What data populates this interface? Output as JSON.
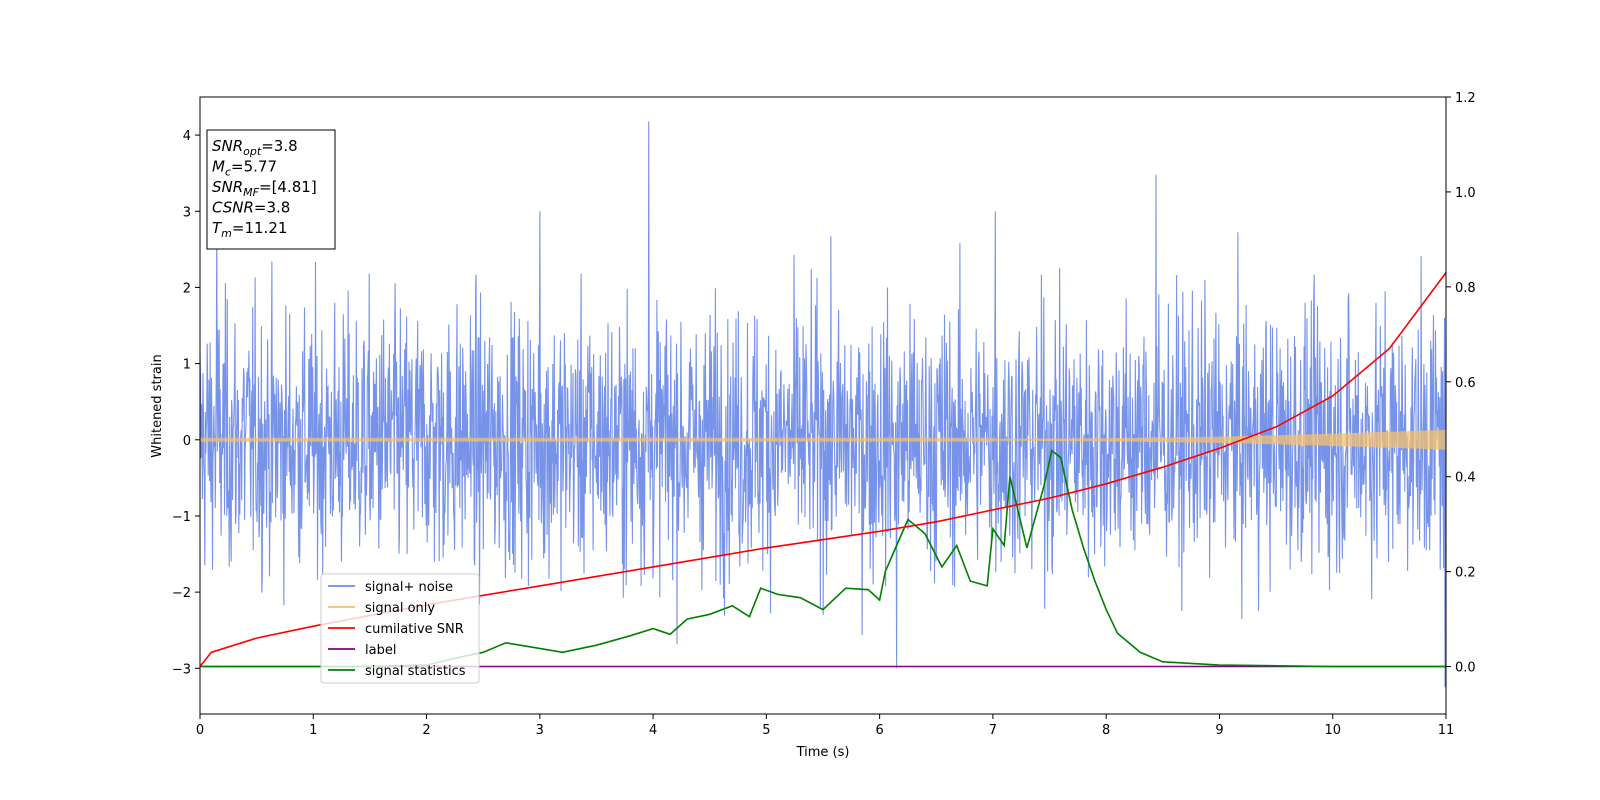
{
  "chart_data": {
    "type": "line",
    "title": "",
    "xlabel": "Time (s)",
    "ylabel": "Whitened strain",
    "y2label": "",
    "xlim": [
      0,
      11
    ],
    "ylim": [
      -3.6,
      4.5
    ],
    "y2lim": [
      -0.1,
      1.2
    ],
    "xticks": [
      "0",
      "1",
      "2",
      "3",
      "4",
      "5",
      "6",
      "7",
      "8",
      "9",
      "10",
      "11"
    ],
    "yticks": [
      "−3",
      "−2",
      "−1",
      "0",
      "1",
      "2",
      "3",
      "4"
    ],
    "y2ticks": [
      "0.0",
      "0.2",
      "0.4",
      "0.6",
      "0.8",
      "1.0",
      "1.2"
    ],
    "grid": false,
    "legend_position": "lower-left",
    "info_box": {
      "position": "top-left",
      "lines": [
        {
          "var": "SNR",
          "sub": "opt",
          "value": "=3.8"
        },
        {
          "var": "M",
          "sub": "c",
          "value": "=5.77"
        },
        {
          "var": "SNR",
          "sub": "MF",
          "value": "=[4.81]"
        },
        {
          "var": "CSNR",
          "sub": "",
          "value": "=3.8"
        },
        {
          "var": "T",
          "sub": "m",
          "value": "=11.21"
        }
      ]
    },
    "series": [
      {
        "name": "signal+ noise",
        "axis": "left",
        "color": "#6f8de8",
        "style": "dense noise, approx. std 0.85, range -3.3 to 4.2",
        "spikes": [
          [
            3.96,
            4.18
          ],
          [
            8.44,
            3.48
          ],
          [
            6.15,
            -3.0
          ],
          [
            0.15,
            2.9
          ],
          [
            10.99,
            2.95
          ],
          [
            7.02,
            3.0
          ],
          [
            3.0,
            3.0
          ],
          [
            10.99,
            -3.25
          ]
        ]
      },
      {
        "name": "signal only",
        "axis": "left",
        "color": "#f5c06d",
        "style": "chirp with growing amplitude",
        "envelope": [
          [
            0,
            0.01
          ],
          [
            7,
            0.01
          ],
          [
            8,
            0.02
          ],
          [
            9,
            0.04
          ],
          [
            10,
            0.08
          ],
          [
            11,
            0.13
          ]
        ]
      },
      {
        "name": "cumilative SNR",
        "axis": "right",
        "color": "#ff0000",
        "points": [
          [
            0,
            0.0
          ],
          [
            0.1,
            0.03
          ],
          [
            0.5,
            0.06
          ],
          [
            1.0,
            0.085
          ],
          [
            2.0,
            0.13
          ],
          [
            3.0,
            0.17
          ],
          [
            4.0,
            0.21
          ],
          [
            5.0,
            0.25
          ],
          [
            6.0,
            0.285
          ],
          [
            6.5,
            0.305
          ],
          [
            7.0,
            0.33
          ],
          [
            7.5,
            0.355
          ],
          [
            8.0,
            0.385
          ],
          [
            8.5,
            0.42
          ],
          [
            9.0,
            0.46
          ],
          [
            9.5,
            0.505
          ],
          [
            10.0,
            0.57
          ],
          [
            10.5,
            0.67
          ],
          [
            11.0,
            0.83
          ]
        ]
      },
      {
        "name": "label",
        "axis": "right",
        "color": "#800080",
        "points": [
          [
            0,
            0.0
          ],
          [
            11,
            0.0
          ]
        ]
      },
      {
        "name": "signal statistics",
        "axis": "right",
        "color": "#008000",
        "points": [
          [
            0,
            0.0
          ],
          [
            1.5,
            0.0
          ],
          [
            2.0,
            0.003
          ],
          [
            2.3,
            0.02
          ],
          [
            2.5,
            0.03
          ],
          [
            2.7,
            0.05
          ],
          [
            2.9,
            0.042
          ],
          [
            3.2,
            0.03
          ],
          [
            3.5,
            0.045
          ],
          [
            3.8,
            0.065
          ],
          [
            4.0,
            0.08
          ],
          [
            4.15,
            0.068
          ],
          [
            4.3,
            0.1
          ],
          [
            4.5,
            0.11
          ],
          [
            4.7,
            0.128
          ],
          [
            4.85,
            0.105
          ],
          [
            4.95,
            0.165
          ],
          [
            5.1,
            0.152
          ],
          [
            5.3,
            0.145
          ],
          [
            5.5,
            0.12
          ],
          [
            5.7,
            0.165
          ],
          [
            5.9,
            0.162
          ],
          [
            6.0,
            0.14
          ],
          [
            6.05,
            0.2
          ],
          [
            6.15,
            0.255
          ],
          [
            6.25,
            0.31
          ],
          [
            6.4,
            0.28
          ],
          [
            6.55,
            0.21
          ],
          [
            6.68,
            0.255
          ],
          [
            6.8,
            0.18
          ],
          [
            6.95,
            0.17
          ],
          [
            7.0,
            0.29
          ],
          [
            7.1,
            0.255
          ],
          [
            7.15,
            0.4
          ],
          [
            7.3,
            0.25
          ],
          [
            7.45,
            0.38
          ],
          [
            7.52,
            0.455
          ],
          [
            7.6,
            0.44
          ],
          [
            7.7,
            0.33
          ],
          [
            7.8,
            0.25
          ],
          [
            7.9,
            0.18
          ],
          [
            8.0,
            0.12
          ],
          [
            8.1,
            0.07
          ],
          [
            8.3,
            0.03
          ],
          [
            8.5,
            0.01
          ],
          [
            9.0,
            0.003
          ],
          [
            10.0,
            0.0
          ],
          [
            11.0,
            0.0
          ]
        ]
      }
    ]
  }
}
